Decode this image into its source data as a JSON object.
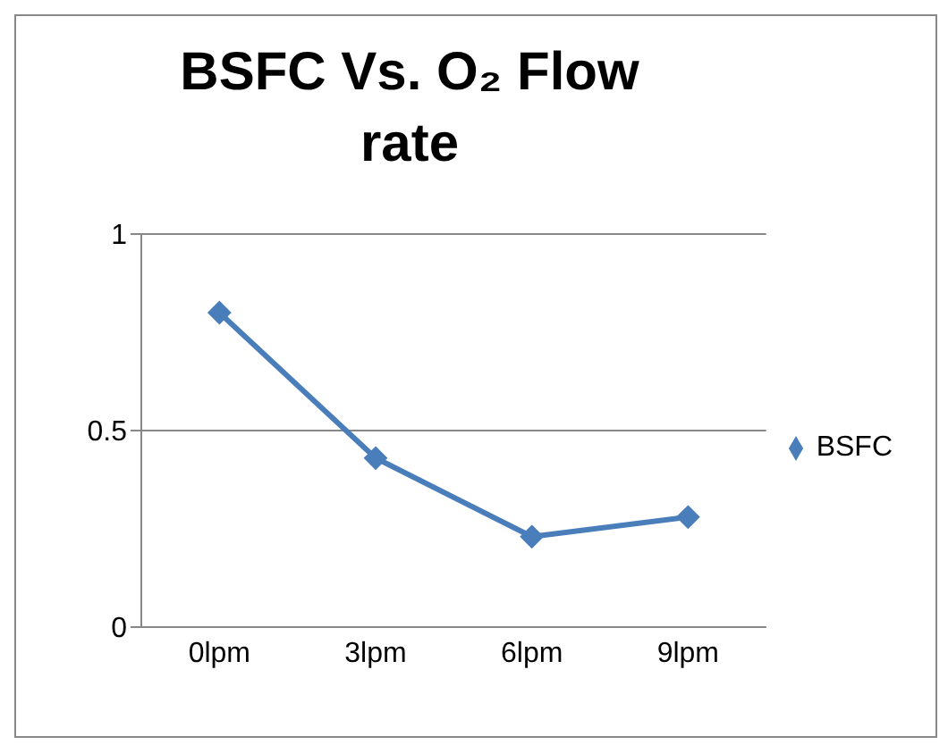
{
  "chart_data": {
    "type": "line",
    "title": "BSFC Vs. O₂ Flow rate",
    "categories": [
      "0lpm",
      "3lpm",
      "6lpm",
      "9lpm"
    ],
    "series": [
      {
        "name": "BSFC",
        "color": "#4a7ebb",
        "values": [
          0.8,
          0.43,
          0.23,
          0.28
        ]
      }
    ],
    "ylim": [
      0,
      1
    ],
    "yticks": [
      0,
      0.5,
      1
    ],
    "grid": "y",
    "legend": "right",
    "marker": "diamond",
    "line_style": "solid"
  }
}
